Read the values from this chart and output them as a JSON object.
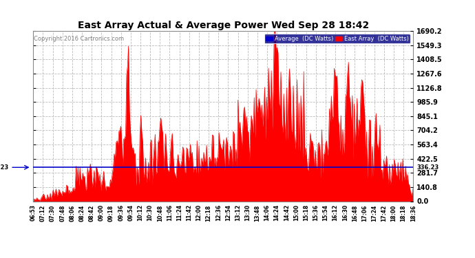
{
  "title": "East Array Actual & Average Power Wed Sep 28 18:42",
  "copyright": "Copyright 2016 Cartronics.com",
  "legend_avg": "Average  (DC Watts)",
  "legend_east": "East Array  (DC Watts)",
  "avg_value": 336.23,
  "yticks": [
    0.0,
    140.8,
    281.7,
    422.5,
    563.4,
    704.2,
    845.1,
    985.9,
    1126.8,
    1267.6,
    1408.5,
    1549.3,
    1690.2
  ],
  "ymax": 1690.2,
  "ymin": 0.0,
  "bg_color": "#ffffff",
  "plot_bg_color": "#ffffff",
  "grid_color": "#bbbbbb",
  "fill_color": "#ff0000",
  "avg_line_color": "#0000cc",
  "xtick_labels": [
    "06:53",
    "07:12",
    "07:30",
    "07:48",
    "08:06",
    "08:24",
    "08:42",
    "09:00",
    "09:18",
    "09:36",
    "09:54",
    "10:12",
    "10:30",
    "10:48",
    "11:06",
    "11:24",
    "11:42",
    "12:00",
    "12:18",
    "12:36",
    "12:54",
    "13:12",
    "13:30",
    "13:48",
    "14:06",
    "14:24",
    "14:42",
    "15:00",
    "15:18",
    "15:36",
    "15:54",
    "16:12",
    "16:30",
    "16:48",
    "17:06",
    "17:24",
    "17:42",
    "18:00",
    "18:18",
    "18:36"
  ],
  "num_points": 400,
  "seed": 7
}
